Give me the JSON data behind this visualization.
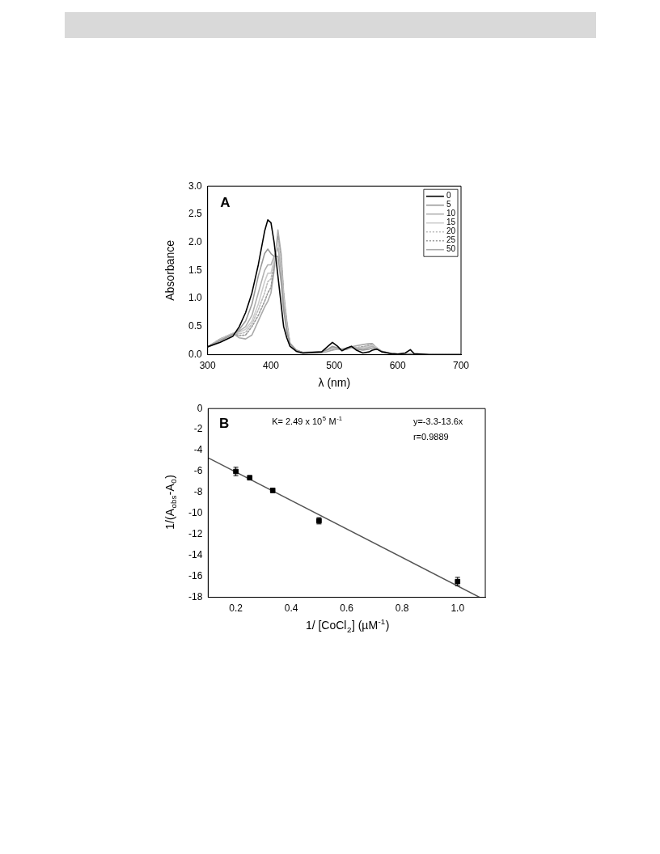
{
  "chart_data": [
    {
      "type": "line",
      "xlabel": "λ (nm)",
      "ylabel": "Absorbance",
      "annotations": [
        "A"
      ],
      "x": [
        300,
        320,
        340,
        350,
        360,
        370,
        380,
        390,
        395,
        400,
        405,
        411,
        416,
        420,
        425,
        430,
        440,
        450,
        480,
        490,
        497,
        505,
        512,
        520,
        527,
        535,
        545,
        555,
        560,
        567,
        575,
        590,
        600,
        612,
        620,
        626,
        650,
        700
      ],
      "series": [
        {
          "name": "0",
          "color": "#000000",
          "values": [
            0.14,
            0.22,
            0.33,
            0.5,
            0.75,
            1.1,
            1.6,
            2.2,
            2.4,
            2.35,
            2.0,
            1.4,
            0.9,
            0.5,
            0.3,
            0.15,
            0.06,
            0.03,
            0.05,
            0.15,
            0.22,
            0.15,
            0.07,
            0.12,
            0.15,
            0.08,
            0.03,
            0.05,
            0.08,
            0.1,
            0.05,
            0.02,
            0.01,
            0.03,
            0.09,
            0.02,
            0,
            0
          ]
        },
        {
          "name": "5",
          "color": "#999999",
          "values": [
            0.14,
            0.25,
            0.36,
            0.45,
            0.6,
            0.9,
            1.4,
            1.8,
            1.88,
            1.8,
            1.75,
            1.75,
            1.3,
            0.8,
            0.4,
            0.2,
            0.08,
            0.04,
            0.05,
            0.1,
            0.15,
            0.12,
            0.08,
            0.1,
            0.14,
            0.1,
            0.08,
            0.1,
            0.12,
            0.1,
            0.06,
            0.02,
            0.01,
            0.01,
            0.02,
            0.01,
            0,
            0
          ]
        },
        {
          "name": "10",
          "color": "#b0b0b0",
          "values": [
            0.14,
            0.26,
            0.37,
            0.42,
            0.5,
            0.7,
            1.1,
            1.5,
            1.6,
            1.6,
            1.75,
            1.9,
            1.5,
            0.9,
            0.45,
            0.2,
            0.08,
            0.04,
            0.05,
            0.09,
            0.13,
            0.11,
            0.08,
            0.1,
            0.13,
            0.11,
            0.1,
            0.13,
            0.15,
            0.11,
            0.06,
            0.02,
            0.01,
            0.01,
            0.01,
            0.01,
            0,
            0
          ]
        },
        {
          "name": "15",
          "color": "#cccccc",
          "values": [
            0.14,
            0.27,
            0.38,
            0.4,
            0.45,
            0.6,
            0.9,
            1.3,
            1.45,
            1.45,
            1.7,
            2.0,
            1.6,
            1.0,
            0.5,
            0.2,
            0.08,
            0.04,
            0.04,
            0.08,
            0.12,
            0.1,
            0.09,
            0.1,
            0.13,
            0.12,
            0.12,
            0.15,
            0.17,
            0.12,
            0.06,
            0.02,
            0.01,
            0.01,
            0.01,
            0.01,
            0,
            0
          ]
        },
        {
          "name": "20",
          "color": "#bbbbbb",
          "line_style": "dotted",
          "values": [
            0.14,
            0.27,
            0.38,
            0.37,
            0.4,
            0.55,
            0.8,
            1.1,
            1.3,
            1.35,
            1.65,
            2.05,
            1.65,
            1.0,
            0.5,
            0.2,
            0.07,
            0.03,
            0.04,
            0.07,
            0.1,
            0.1,
            0.1,
            0.1,
            0.12,
            0.12,
            0.13,
            0.16,
            0.18,
            0.12,
            0.06,
            0.02,
            0.01,
            0.01,
            0.01,
            0.01,
            0,
            0
          ]
        },
        {
          "name": "25",
          "color": "#999999",
          "line_style": "dotted",
          "values": [
            0.14,
            0.28,
            0.38,
            0.34,
            0.35,
            0.5,
            0.7,
            0.95,
            1.1,
            1.2,
            1.6,
            2.1,
            1.7,
            1.05,
            0.55,
            0.2,
            0.07,
            0.03,
            0.04,
            0.07,
            0.09,
            0.1,
            0.1,
            0.11,
            0.12,
            0.13,
            0.14,
            0.17,
            0.19,
            0.12,
            0.06,
            0.02,
            0.01,
            0.01,
            0.01,
            0.01,
            0,
            0
          ]
        },
        {
          "name": "50",
          "color": "#aaaaaa",
          "values": [
            0.14,
            0.28,
            0.38,
            0.3,
            0.28,
            0.35,
            0.6,
            0.85,
            0.95,
            1.1,
            1.5,
            2.22,
            1.8,
            1.1,
            0.6,
            0.2,
            0.07,
            0.03,
            0.03,
            0.06,
            0.08,
            0.1,
            0.1,
            0.12,
            0.14,
            0.16,
            0.18,
            0.2,
            0.2,
            0.12,
            0.06,
            0.02,
            0.01,
            0.01,
            0.01,
            0.01,
            0,
            0
          ]
        }
      ],
      "xlim": [
        300,
        700
      ],
      "xticks": [
        300,
        400,
        500,
        600,
        700
      ],
      "ylim": [
        0,
        3
      ],
      "yticks": [
        {
          "value": 0,
          "label": "0.0"
        },
        0.5,
        {
          "value": 1,
          "label": "1.0"
        },
        1.5,
        {
          "value": 2,
          "label": "2.0"
        },
        2.5,
        {
          "value": 3,
          "label": "3.0"
        }
      ],
      "legend": "top right"
    },
    {
      "type": "scatter",
      "xlabel": "1/ [CoCl$_{2}$] (µM$^{-1}$)",
      "ylabel": "1/(A$_{obs}$-A$_{0}$)",
      "annotations": [
        "B",
        "K= 2.49 x 10$^{5}$ M$^{-1}$",
        "y=-3.3-13.6x",
        "r=0.9889"
      ],
      "series": [
        {
          "type": "scatter",
          "color": "#000000",
          "marker": "square",
          "x": [
            0.2,
            0.25,
            0.333,
            0.5,
            1.0
          ],
          "values": [
            -6.0,
            -6.6,
            -7.8,
            -10.7,
            -16.5
          ],
          "errors": [
            0.4,
            0.2,
            0.2,
            0.3,
            0.4
          ]
        },
        {
          "type": "line",
          "color": "#555555",
          "x": [
            0.1,
            1.08
          ],
          "values": [
            -4.7,
            -18.0
          ]
        }
      ],
      "xlim": [
        0.1,
        1.1
      ],
      "xticks": [
        0.2,
        0.4,
        0.6,
        0.8,
        {
          "value": 1,
          "label": "1.0"
        }
      ],
      "ylim": [
        -18,
        0
      ],
      "yticks": [
        -18,
        -16,
        -14,
        -12,
        -10,
        -8,
        -6,
        -4,
        -2,
        0
      ],
      "legend": false
    }
  ]
}
